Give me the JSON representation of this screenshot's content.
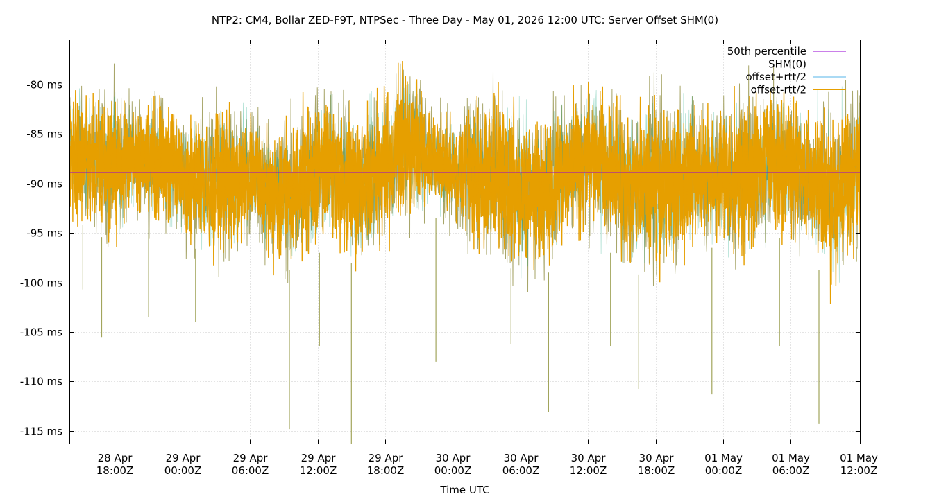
{
  "chart_data": {
    "type": "line",
    "title": "NTP2: CM4, Bollar ZED-F9T, NTPSec - Three Day - May 01, 2026 12:00 UTC: Server Offset SHM(0)",
    "xlabel": "Time UTC",
    "ylabel": "",
    "x_range": [
      "2026-04-28T14:00Z",
      "2026-05-01T12:10Z"
    ],
    "ylim": [
      -116.3,
      -75.5
    ],
    "y_unit": "ms",
    "y_ticks": [
      -80,
      -85,
      -90,
      -95,
      -100,
      -105,
      -110,
      -115
    ],
    "y_tick_labels": [
      "-80 ms",
      "-85 ms",
      "-90 ms",
      "-95 ms",
      "-100 ms",
      "-105 ms",
      "-110 ms",
      "-115 ms"
    ],
    "x_ticks": [
      {
        "t": "2026-04-28T18:00Z",
        "line1": "28 Apr",
        "line2": "18:00Z"
      },
      {
        "t": "2026-04-29T00:00Z",
        "line1": "29 Apr",
        "line2": "00:00Z"
      },
      {
        "t": "2026-04-29T06:00Z",
        "line1": "29 Apr",
        "line2": "06:00Z"
      },
      {
        "t": "2026-04-29T12:00Z",
        "line1": "29 Apr",
        "line2": "12:00Z"
      },
      {
        "t": "2026-04-29T18:00Z",
        "line1": "29 Apr",
        "line2": "18:00Z"
      },
      {
        "t": "2026-04-30T00:00Z",
        "line1": "30 Apr",
        "line2": "00:00Z"
      },
      {
        "t": "2026-04-30T06:00Z",
        "line1": "30 Apr",
        "line2": "06:00Z"
      },
      {
        "t": "2026-04-30T12:00Z",
        "line1": "30 Apr",
        "line2": "12:00Z"
      },
      {
        "t": "2026-04-30T18:00Z",
        "line1": "30 Apr",
        "line2": "18:00Z"
      },
      {
        "t": "2026-05-01T00:00Z",
        "line1": "01 May",
        "line2": "00:00Z"
      },
      {
        "t": "2026-05-01T06:00Z",
        "line1": "01 May",
        "line2": "06:00Z"
      },
      {
        "t": "2026-05-01T12:00Z",
        "line1": "01 May",
        "line2": "12:00Z"
      }
    ],
    "grid": true,
    "legend_position": "top-right",
    "series": [
      {
        "name": "50th percentile",
        "color": "#9400d3",
        "kind": "constant",
        "value": -88.9
      },
      {
        "name": "SHM(0)",
        "color": "#009e73",
        "kind": "offset"
      },
      {
        "name": "offset+rtt/2",
        "color": "#56b4e9",
        "kind": "offset"
      },
      {
        "name": "offset-rtt/2",
        "color": "#e69f00",
        "kind": "offset"
      }
    ],
    "offset_envelope": {
      "t": [
        "2026-04-28T14:00Z",
        "2026-04-28T16:00Z",
        "2026-04-28T18:00Z",
        "2026-04-28T20:00Z",
        "2026-04-28T22:00Z",
        "2026-04-29T00:00Z",
        "2026-04-29T02:00Z",
        "2026-04-29T04:00Z",
        "2026-04-29T06:00Z",
        "2026-04-29T08:00Z",
        "2026-04-29T10:00Z",
        "2026-04-29T12:00Z",
        "2026-04-29T14:00Z",
        "2026-04-29T16:00Z",
        "2026-04-29T18:00Z",
        "2026-04-29T20:00Z",
        "2026-04-29T22:00Z",
        "2026-04-30T00:00Z",
        "2026-04-30T02:00Z",
        "2026-04-30T04:00Z",
        "2026-04-30T06:00Z",
        "2026-04-30T08:00Z",
        "2026-04-30T10:00Z",
        "2026-04-30T12:00Z",
        "2026-04-30T14:00Z",
        "2026-04-30T16:00Z",
        "2026-04-30T18:00Z",
        "2026-04-30T20:00Z",
        "2026-04-30T22:00Z",
        "2026-05-01T00:00Z",
        "2026-05-01T02:00Z",
        "2026-05-01T04:00Z",
        "2026-05-01T06:00Z",
        "2026-05-01T08:00Z",
        "2026-05-01T10:00Z",
        "2026-05-01T12:00Z"
      ],
      "upper": [
        -80,
        -81,
        -80,
        -82,
        -81,
        -83,
        -82,
        -81,
        -82,
        -84,
        -83,
        -80,
        -82,
        -82,
        -80,
        -77,
        -82,
        -83,
        -81,
        -80,
        -82,
        -83,
        -81,
        -80,
        -81,
        -82,
        -80,
        -81,
        -82,
        -82,
        -80,
        -79,
        -81,
        -82,
        -82,
        -81
      ],
      "lower": [
        -93,
        -95,
        -96,
        -93,
        -94,
        -96,
        -97,
        -98,
        -96,
        -98,
        -99,
        -97,
        -97,
        -99,
        -96,
        -94,
        -93,
        -95,
        -96,
        -98,
        -99,
        -100,
        -96,
        -95,
        -97,
        -99,
        -100,
        -98,
        -96,
        -97,
        -98,
        -96,
        -95,
        -98,
        -101,
        -96
      ],
      "spikes": [
        {
          "t": "2026-04-28T15:10Z",
          "v": -100.7
        },
        {
          "t": "2026-04-28T16:50Z",
          "v": -105.5
        },
        {
          "t": "2026-04-28T21:00Z",
          "v": -103.5
        },
        {
          "t": "2026-04-29T01:10Z",
          "v": -104.0
        },
        {
          "t": "2026-04-29T09:30Z",
          "v": -114.8
        },
        {
          "t": "2026-04-29T12:10Z",
          "v": -106.4
        },
        {
          "t": "2026-04-29T15:00Z",
          "v": -116.3
        },
        {
          "t": "2026-04-29T22:30Z",
          "v": -108.0
        },
        {
          "t": "2026-04-30T05:10Z",
          "v": -106.2
        },
        {
          "t": "2026-04-30T08:30Z",
          "v": -113.1
        },
        {
          "t": "2026-04-30T14:00Z",
          "v": -106.4
        },
        {
          "t": "2026-04-30T16:30Z",
          "v": -110.8
        },
        {
          "t": "2026-04-30T23:00Z",
          "v": -111.3
        },
        {
          "t": "2026-05-01T05:00Z",
          "v": -106.4
        },
        {
          "t": "2026-05-01T08:30Z",
          "v": -114.3
        },
        {
          "t": "2026-05-01T11:50Z",
          "v": -97.9
        }
      ]
    }
  }
}
